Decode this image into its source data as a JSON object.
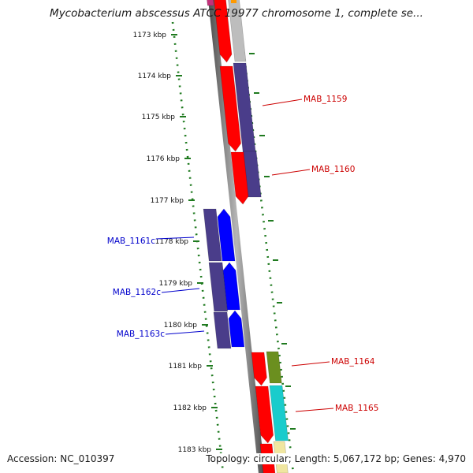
{
  "title": "Mycobacterium abscessus ATCC 19977 chromosome 1, complete se...",
  "accession": "Accession: NC_010397",
  "summary": "Topology: circular; Length: 5,067,172 bp; Genes: 4,970",
  "ticks": [
    "1173 kbp",
    "1174 kbp",
    "1175 kbp",
    "1176 kbp",
    "1177 kbp",
    "1178 kbp",
    "1179 kbp",
    "1180 kbp",
    "1181 kbp",
    "1182 kbp",
    "1183 kbp"
  ],
  "genes": [
    {
      "label": "MAB_1159",
      "strand": "forward"
    },
    {
      "label": "MAB_1160",
      "strand": "forward"
    },
    {
      "label": "MAB_1161c",
      "strand": "reverse"
    },
    {
      "label": "MAB_1162c",
      "strand": "reverse"
    },
    {
      "label": "MAB_1163c",
      "strand": "reverse"
    },
    {
      "label": "MAB_1164",
      "strand": "forward"
    },
    {
      "label": "MAB_1165",
      "strand": "forward"
    }
  ],
  "colors": {
    "forward_cds": "#ff0000",
    "reverse_cds": "#0000ff",
    "forward_label": "#cc0000",
    "reverse_label": "#0000cc",
    "gene_block": "#4a3d8a",
    "tick_dots": "#1f7a1f",
    "backbone": "#8c8c8c"
  }
}
